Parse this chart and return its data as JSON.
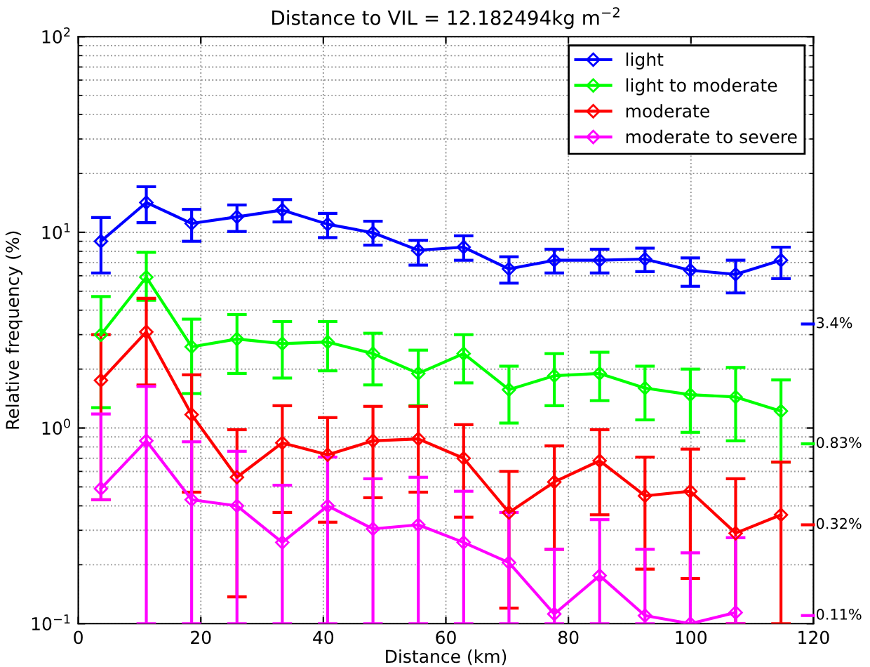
{
  "chart_data": {
    "type": "line",
    "title": "Distance to VIL = 12.182494kg m$^{−2}$",
    "xlabel": "Distance (km)",
    "ylabel": "Relative frequency (%)",
    "x": [
      3.7,
      11.1,
      18.5,
      25.9,
      33.3,
      40.7,
      48.1,
      55.5,
      62.9,
      70.3,
      77.7,
      85.1,
      92.5,
      99.9,
      107.3,
      114.7
    ],
    "series": [
      {
        "name": "light",
        "color": "#0000ff",
        "values": [
          9.0,
          14.2,
          11.1,
          12.0,
          13.0,
          11.0,
          9.95,
          8.1,
          8.4,
          6.5,
          7.2,
          7.2,
          7.3,
          6.4,
          6.1,
          7.2
        ],
        "errors": [
          [
            6.2,
            11.9
          ],
          [
            11.2,
            17.1
          ],
          [
            9.0,
            13.1
          ],
          [
            10.1,
            13.8
          ],
          [
            11.3,
            14.7
          ],
          [
            9.4,
            12.5
          ],
          [
            8.6,
            11.4
          ],
          [
            6.8,
            9.1
          ],
          [
            7.2,
            9.6
          ],
          [
            5.5,
            7.5
          ],
          [
            6.2,
            8.2
          ],
          [
            6.2,
            8.2
          ],
          [
            6.3,
            8.3
          ],
          [
            5.3,
            7.4
          ],
          [
            4.9,
            7.2
          ],
          [
            5.8,
            8.4
          ]
        ]
      },
      {
        "name": "light to moderate",
        "color": "#00ff00",
        "values": [
          3.0,
          5.9,
          2.6,
          2.85,
          2.7,
          2.75,
          2.4,
          1.9,
          2.4,
          1.57,
          1.85,
          1.9,
          1.6,
          1.48,
          1.44,
          1.22
        ],
        "errors": [
          [
            1.27,
            4.7
          ],
          [
            4.5,
            7.9
          ],
          [
            1.5,
            3.6
          ],
          [
            1.9,
            3.8
          ],
          [
            1.8,
            3.5
          ],
          [
            1.96,
            3.5
          ],
          [
            1.66,
            3.05
          ],
          [
            1.3,
            2.5
          ],
          [
            1.7,
            3.0
          ],
          [
            1.06,
            2.07
          ],
          [
            1.3,
            2.4
          ],
          [
            1.38,
            2.44
          ],
          [
            1.1,
            2.07
          ],
          [
            0.95,
            2.0
          ],
          [
            0.86,
            2.04
          ],
          [
            0.67,
            1.76
          ]
        ]
      },
      {
        "name": "moderate",
        "color": "#ff0000",
        "values": [
          1.75,
          3.1,
          1.17,
          0.56,
          0.84,
          0.73,
          0.86,
          0.88,
          0.7,
          0.37,
          0.53,
          0.68,
          0.45,
          0.475,
          0.29,
          0.36
        ],
        "errors": [
          [
            0.43,
            3.0
          ],
          [
            1.66,
            4.6
          ],
          [
            0.47,
            1.87
          ],
          [
            0.137,
            0.98
          ],
          [
            0.37,
            1.3
          ],
          [
            0.33,
            1.13
          ],
          [
            0.44,
            1.29
          ],
          [
            0.47,
            1.29
          ],
          [
            0.35,
            1.04
          ],
          [
            0.12,
            0.6
          ],
          [
            0.24,
            0.81
          ],
          [
            0.36,
            0.98
          ],
          [
            0.19,
            0.71
          ],
          [
            0.17,
            0.78
          ],
          [
            0.1,
            0.55
          ],
          [
            0.1,
            0.67
          ]
        ]
      },
      {
        "name": "moderate to severe",
        "color": "#ff00ff",
        "values": [
          0.49,
          0.86,
          0.43,
          0.4,
          0.26,
          0.4,
          0.305,
          0.32,
          0.26,
          0.205,
          0.112,
          0.176,
          0.11,
          0.1,
          0.114,
          null
        ],
        "errors": [
          [
            0.43,
            1.18
          ],
          [
            0.1,
            1.63
          ],
          [
            0.1,
            0.85
          ],
          [
            0.1,
            0.76
          ],
          [
            0.1,
            0.51
          ],
          [
            0.1,
            0.71
          ],
          [
            0.1,
            0.55
          ],
          [
            0.1,
            0.56
          ],
          [
            0.1,
            0.475
          ],
          [
            0.1,
            0.37
          ],
          [
            0.1,
            0.24
          ],
          [
            0.1,
            0.34
          ],
          [
            0.1,
            0.24
          ],
          [
            0.1,
            0.23
          ],
          [
            0.1,
            0.275
          ],
          null
        ]
      }
    ],
    "log": "y",
    "xlim": [
      0,
      120
    ],
    "xticks": [
      0,
      20,
      40,
      60,
      80,
      100,
      120
    ],
    "ylim": [
      0.1,
      100
    ],
    "yticks": [
      {
        "value": 0.1,
        "label": "10$^{−1}$"
      },
      {
        "value": 1,
        "label": "10$^{0}$"
      },
      {
        "value": 10,
        "label": "10$^{1}$"
      },
      {
        "value": 100,
        "label": "10$^{2}$"
      }
    ],
    "grid": true,
    "legend": "top right",
    "marker": "diamond",
    "line_style": "solid",
    "ref_lines": [
      {
        "axis": "y",
        "value": 3.4,
        "label": "3.4%",
        "color": "#0000ff"
      },
      {
        "axis": "y",
        "value": 0.83,
        "label": "0.83%",
        "color": "#00ff00"
      },
      {
        "axis": "y",
        "value": 0.32,
        "label": "0.32%",
        "color": "#ff0000"
      },
      {
        "axis": "y",
        "value": 0.11,
        "label": "0.11%",
        "color": "#ff00ff"
      }
    ]
  }
}
